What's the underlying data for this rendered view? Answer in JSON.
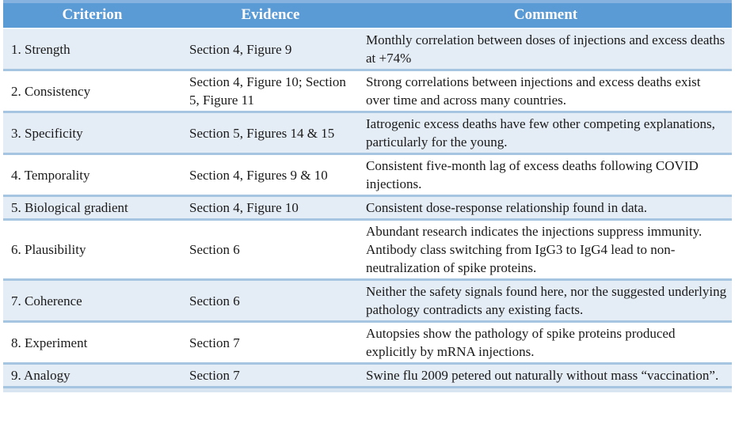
{
  "table": {
    "headers": {
      "criterion": "Criterion",
      "evidence": "Evidence",
      "comment": "Comment"
    },
    "rows": [
      {
        "criterion": "1. Strength",
        "evidence": "Section 4, Figure 9",
        "comment": "Monthly correlation between doses of injections and excess deaths at +74%"
      },
      {
        "criterion": "2. Consistency",
        "evidence": "Section 4, Figure 10; Section 5, Figure 11",
        "comment": "Strong correlations between injections and excess deaths exist over time and across many countries."
      },
      {
        "criterion": "3. Specificity",
        "evidence": "Section 5, Figures 14 & 15",
        "comment": "Iatrogenic excess deaths have few other competing explanations, particularly for the young."
      },
      {
        "criterion": "4. Temporality",
        "evidence": "Section 4, Figures 9 & 10",
        "comment": "Consistent five-month lag of excess deaths following COVID injections."
      },
      {
        "criterion": "5. Biological gradient",
        "evidence": "Section 4, Figure 10",
        "comment": "Consistent dose-response relationship found in data."
      },
      {
        "criterion": "6. Plausibility",
        "evidence": "Section 6",
        "comment": "Abundant research indicates the injections suppress immunity. Antibody class switching from IgG3 to IgG4 lead to non-neutralization of spike proteins."
      },
      {
        "criterion": "7. Coherence",
        "evidence": "Section 6",
        "comment": "Neither the safety signals found here, nor the suggested underlying pathology contradicts any existing facts."
      },
      {
        "criterion": "8. Experiment",
        "evidence": "Section 7",
        "comment": "Autopsies show the pathology of spike proteins produced explicitly by mRNA injections."
      },
      {
        "criterion": "9. Analogy",
        "evidence": "Section 7",
        "comment": "Swine flu 2009 petered out naturally without mass “vaccination”."
      }
    ]
  },
  "colors": {
    "header_bg": "#5B9BD5",
    "header_top_strip": "#85B2DE",
    "header_text": "#FFFFFF",
    "row_shaded_bg": "#E4ECF5",
    "row_plain_bg": "#FFFFFF",
    "row_divider": "#A6C5E0",
    "body_text": "#1A1A1A",
    "bottom_strip": "#D9E5F0"
  }
}
